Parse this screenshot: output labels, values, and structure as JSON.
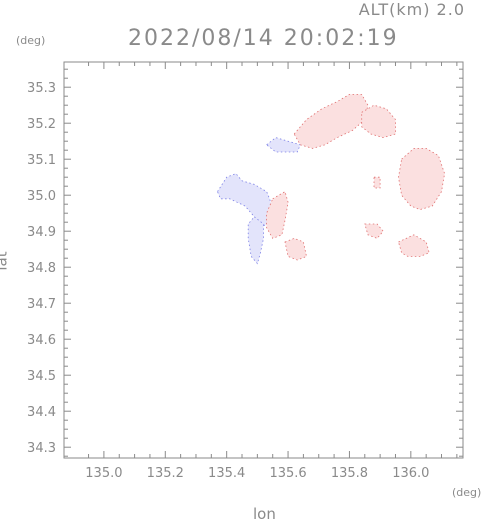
{
  "header": {
    "altitude_label": "ALT(km) 2.0",
    "timestamp": "2022/08/14 20:02:19"
  },
  "axes": {
    "x_label": "lon",
    "y_label": "lat",
    "x_unit": "(deg)",
    "y_unit": "(deg)",
    "x_range": [
      134.87,
      136.17
    ],
    "y_range": [
      34.27,
      35.37
    ],
    "x_ticks": [
      {
        "value": 135.0,
        "label": "135.0"
      },
      {
        "value": 135.2,
        "label": "135.2"
      },
      {
        "value": 135.4,
        "label": "135.4"
      },
      {
        "value": 135.6,
        "label": "135.6"
      },
      {
        "value": 135.8,
        "label": "135.8"
      },
      {
        "value": 136.0,
        "label": "136.0"
      }
    ],
    "y_ticks": [
      {
        "value": 34.3,
        "label": "34.3"
      },
      {
        "value": 34.4,
        "label": "34.4"
      },
      {
        "value": 34.5,
        "label": "34.5"
      },
      {
        "value": 34.6,
        "label": "34.6"
      },
      {
        "value": 34.7,
        "label": "34.7"
      },
      {
        "value": 34.8,
        "label": "34.8"
      },
      {
        "value": 34.9,
        "label": "34.9"
      },
      {
        "value": 35.0,
        "label": "35.0"
      },
      {
        "value": 35.1,
        "label": "35.1"
      },
      {
        "value": 35.2,
        "label": "35.2"
      },
      {
        "value": 35.3,
        "label": "35.3"
      }
    ],
    "minor_per_major": 4
  },
  "colors": {
    "axis": "#8a8a8a",
    "approaching": "#e3e4fb",
    "approaching_strong": "#7c80e6",
    "receding": "#fbe0e0",
    "receding_strong": "#f2b0b0",
    "receding_edge": "#e07070"
  },
  "echo_regions": [
    {
      "kind": "approaching",
      "points": [
        [
          135.37,
          35.01
        ],
        [
          135.4,
          35.05
        ],
        [
          135.43,
          35.06
        ],
        [
          135.45,
          35.04
        ],
        [
          135.49,
          35.03
        ],
        [
          135.53,
          35.01
        ],
        [
          135.54,
          34.99
        ],
        [
          135.55,
          34.96
        ],
        [
          135.53,
          34.92
        ],
        [
          135.51,
          34.91
        ],
        [
          135.49,
          34.94
        ],
        [
          135.46,
          34.97
        ],
        [
          135.41,
          34.99
        ],
        [
          135.38,
          34.99
        ]
      ]
    },
    {
      "kind": "approaching",
      "points": [
        [
          135.49,
          34.94
        ],
        [
          135.52,
          34.92
        ],
        [
          135.52,
          34.88
        ],
        [
          135.51,
          34.84
        ],
        [
          135.5,
          34.81
        ],
        [
          135.48,
          34.83
        ],
        [
          135.47,
          34.88
        ],
        [
          135.47,
          34.92
        ]
      ]
    },
    {
      "kind": "approaching",
      "points": [
        [
          135.53,
          35.14
        ],
        [
          135.56,
          35.16
        ],
        [
          135.6,
          35.15
        ],
        [
          135.64,
          35.14
        ],
        [
          135.63,
          35.12
        ],
        [
          135.59,
          35.12
        ],
        [
          135.56,
          35.12
        ]
      ]
    },
    {
      "kind": "receding",
      "points": [
        [
          135.62,
          35.17
        ],
        [
          135.66,
          35.21
        ],
        [
          135.71,
          35.24
        ],
        [
          135.76,
          35.26
        ],
        [
          135.8,
          35.28
        ],
        [
          135.84,
          35.28
        ],
        [
          135.86,
          35.25
        ],
        [
          135.85,
          35.21
        ],
        [
          135.81,
          35.18
        ],
        [
          135.76,
          35.16
        ],
        [
          135.72,
          35.14
        ],
        [
          135.68,
          35.13
        ],
        [
          135.64,
          35.14
        ]
      ]
    },
    {
      "kind": "receding",
      "points": [
        [
          135.84,
          35.23
        ],
        [
          135.88,
          35.25
        ],
        [
          135.92,
          35.24
        ],
        [
          135.95,
          35.21
        ],
        [
          135.95,
          35.17
        ],
        [
          135.91,
          35.16
        ],
        [
          135.87,
          35.17
        ],
        [
          135.84,
          35.19
        ]
      ]
    },
    {
      "kind": "receding",
      "points": [
        [
          135.97,
          35.1
        ],
        [
          136.01,
          35.13
        ],
        [
          136.05,
          35.13
        ],
        [
          136.09,
          35.11
        ],
        [
          136.11,
          35.06
        ],
        [
          136.1,
          35.01
        ],
        [
          136.07,
          34.97
        ],
        [
          136.03,
          34.96
        ],
        [
          136.0,
          34.97
        ],
        [
          135.97,
          35.0
        ],
        [
          135.96,
          35.05
        ]
      ]
    },
    {
      "kind": "receding",
      "points": [
        [
          135.55,
          34.99
        ],
        [
          135.59,
          35.01
        ],
        [
          135.6,
          34.98
        ],
        [
          135.59,
          34.93
        ],
        [
          135.58,
          34.89
        ],
        [
          135.55,
          34.88
        ],
        [
          135.53,
          34.91
        ],
        [
          135.53,
          34.95
        ]
      ]
    },
    {
      "kind": "receding",
      "points": [
        [
          135.59,
          34.87
        ],
        [
          135.62,
          34.88
        ],
        [
          135.65,
          34.87
        ],
        [
          135.66,
          34.83
        ],
        [
          135.63,
          34.82
        ],
        [
          135.6,
          34.83
        ]
      ]
    },
    {
      "kind": "receding",
      "points": [
        [
          135.85,
          34.92
        ],
        [
          135.89,
          34.92
        ],
        [
          135.91,
          34.9
        ],
        [
          135.89,
          34.88
        ],
        [
          135.86,
          34.89
        ]
      ]
    },
    {
      "kind": "receding",
      "points": [
        [
          135.96,
          34.87
        ],
        [
          136.01,
          34.89
        ],
        [
          136.05,
          34.87
        ],
        [
          136.06,
          34.84
        ],
        [
          136.03,
          34.83
        ],
        [
          135.99,
          34.83
        ],
        [
          135.97,
          34.84
        ]
      ]
    },
    {
      "kind": "receding",
      "points": [
        [
          135.88,
          35.05
        ],
        [
          135.9,
          35.05
        ],
        [
          135.9,
          35.02
        ],
        [
          135.88,
          35.02
        ]
      ]
    }
  ]
}
